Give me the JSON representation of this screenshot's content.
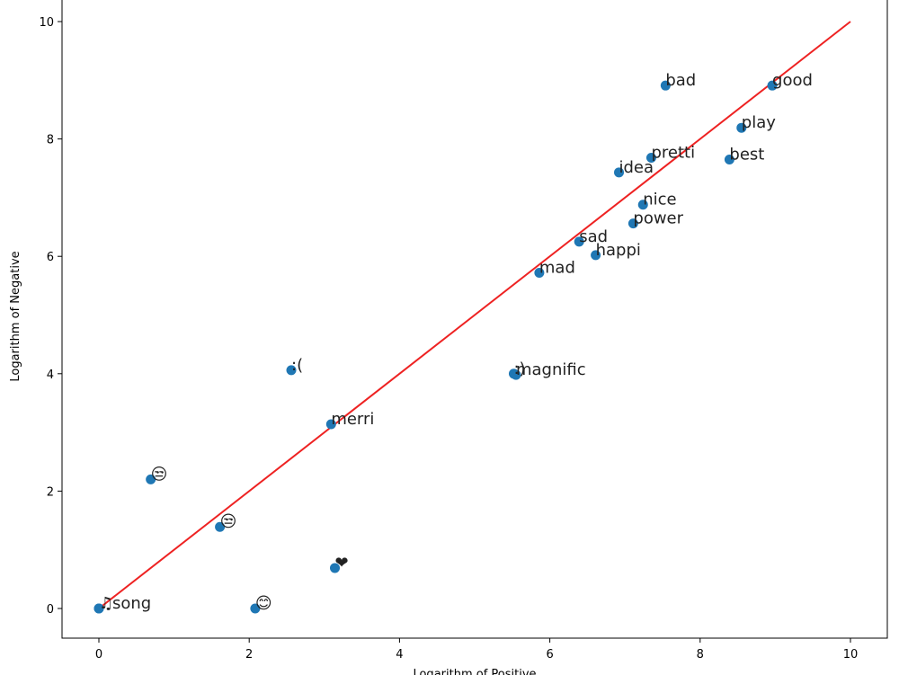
{
  "chart_data": {
    "type": "scatter",
    "title": "",
    "xlabel": "Logarithm of Positive",
    "ylabel": "Logarithm of Negative",
    "xlim": [
      -0.5,
      10.5
    ],
    "ylim": [
      -0.5,
      10.3
    ],
    "xticks": [
      0,
      2,
      4,
      6,
      8,
      10
    ],
    "yticks": [
      0,
      2,
      4,
      6,
      8,
      10
    ],
    "grid": false,
    "colors": {
      "points": "#1f77b4",
      "line": "#ee2222"
    },
    "reference_line": {
      "x": [
        0,
        10
      ],
      "y": [
        0,
        10
      ]
    },
    "points": [
      {
        "label": "bad",
        "x": 7.54,
        "y": 8.91
      },
      {
        "label": "good",
        "x": 8.96,
        "y": 8.91
      },
      {
        "label": "play",
        "x": 8.55,
        "y": 8.19
      },
      {
        "label": "pretti",
        "x": 7.35,
        "y": 7.68
      },
      {
        "label": "best",
        "x": 8.39,
        "y": 7.65
      },
      {
        "label": "idea",
        "x": 6.92,
        "y": 7.43
      },
      {
        "label": "nice",
        "x": 7.24,
        "y": 6.88
      },
      {
        "label": "power",
        "x": 7.11,
        "y": 6.56
      },
      {
        "label": "sad",
        "x": 6.39,
        "y": 6.25
      },
      {
        "label": "happi",
        "x": 6.61,
        "y": 6.02
      },
      {
        "label": "mad",
        "x": 5.86,
        "y": 5.72
      },
      {
        "label": ":(",
        "x": 2.56,
        "y": 4.06
      },
      {
        "label": ":)",
        "x": 5.52,
        "y": 4.0
      },
      {
        "label": "magnific",
        "x": 5.55,
        "y": 3.98
      },
      {
        "label": "merri",
        "x": 3.09,
        "y": 3.14
      },
      {
        "label": "😒",
        "x": 0.69,
        "y": 2.2
      },
      {
        "label": "😒",
        "x": 1.61,
        "y": 1.39
      },
      {
        "label": "❤",
        "x": 3.14,
        "y": 0.69
      },
      {
        "label": "😊",
        "x": 2.08,
        "y": 0.0
      },
      {
        "label": "♫",
        "x": 0.0,
        "y": 0.0
      },
      {
        "label": "song",
        "x": 0.0,
        "y": 0.0
      }
    ]
  }
}
